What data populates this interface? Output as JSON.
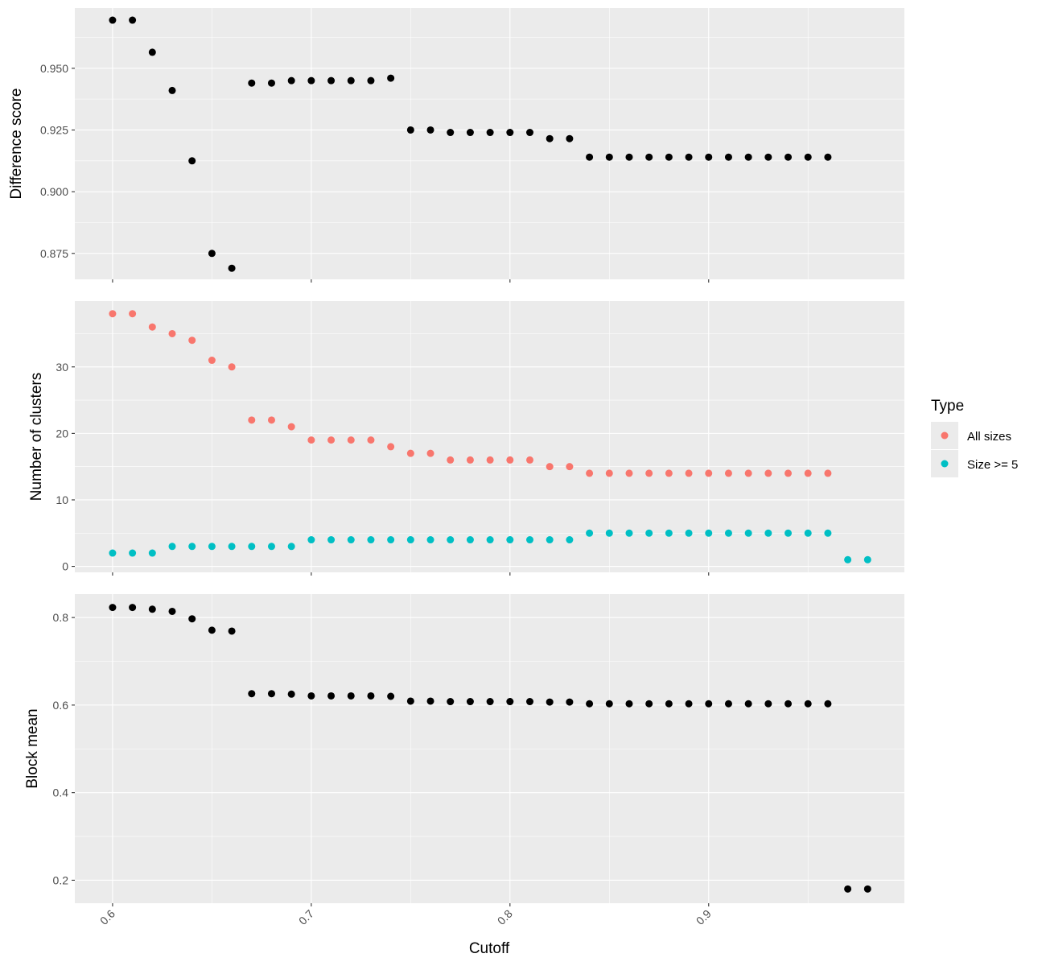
{
  "chart_data": [
    {
      "type": "scatter",
      "ylabel": "Difference score",
      "xlabel": "",
      "xlim": [
        0.581,
        0.9985
      ],
      "ylim": [
        0.8645,
        0.9744
      ],
      "grid": true,
      "yticks": [
        0.875,
        0.9,
        0.925,
        0.95
      ],
      "ytick_labels": [
        "0.875",
        "0.900",
        "0.925",
        "0.950"
      ],
      "series": [
        {
          "color": "#000000",
          "points": [
            [
              0.6,
              0.9695
            ],
            [
              0.61,
              0.9695
            ],
            [
              0.62,
              0.9565
            ],
            [
              0.63,
              0.941
            ],
            [
              0.64,
              0.9125
            ],
            [
              0.65,
              0.875
            ],
            [
              0.66,
              0.869
            ],
            [
              0.67,
              0.944
            ],
            [
              0.68,
              0.944
            ],
            [
              0.69,
              0.945
            ],
            [
              0.7,
              0.945
            ],
            [
              0.71,
              0.945
            ],
            [
              0.72,
              0.945
            ],
            [
              0.73,
              0.945
            ],
            [
              0.74,
              0.946
            ],
            [
              0.75,
              0.925
            ],
            [
              0.76,
              0.925
            ],
            [
              0.77,
              0.924
            ],
            [
              0.78,
              0.924
            ],
            [
              0.79,
              0.924
            ],
            [
              0.8,
              0.924
            ],
            [
              0.81,
              0.924
            ],
            [
              0.82,
              0.9215
            ],
            [
              0.83,
              0.9215
            ],
            [
              0.84,
              0.914
            ],
            [
              0.85,
              0.914
            ],
            [
              0.86,
              0.914
            ],
            [
              0.87,
              0.914
            ],
            [
              0.88,
              0.914
            ],
            [
              0.89,
              0.914
            ],
            [
              0.9,
              0.914
            ],
            [
              0.91,
              0.914
            ],
            [
              0.92,
              0.914
            ],
            [
              0.93,
              0.914
            ],
            [
              0.94,
              0.914
            ],
            [
              0.95,
              0.914
            ],
            [
              0.96,
              0.914
            ]
          ]
        }
      ]
    },
    {
      "type": "scatter",
      "ylabel": "Number of clusters",
      "xlabel": "",
      "xlim": [
        0.581,
        0.9985
      ],
      "ylim": [
        -0.9,
        39.9
      ],
      "grid": true,
      "yticks": [
        0,
        10,
        20,
        30
      ],
      "ytick_labels": [
        "0",
        "10",
        "20",
        "30"
      ],
      "legend": {
        "title": "Type",
        "position": "right"
      },
      "series": [
        {
          "name": "All sizes",
          "color": "#F8766D",
          "points": [
            [
              0.6,
              38
            ],
            [
              0.61,
              38
            ],
            [
              0.62,
              36
            ],
            [
              0.63,
              35
            ],
            [
              0.64,
              34
            ],
            [
              0.65,
              31
            ],
            [
              0.66,
              30
            ],
            [
              0.67,
              22
            ],
            [
              0.68,
              22
            ],
            [
              0.69,
              21
            ],
            [
              0.7,
              19
            ],
            [
              0.71,
              19
            ],
            [
              0.72,
              19
            ],
            [
              0.73,
              19
            ],
            [
              0.74,
              18
            ],
            [
              0.75,
              17
            ],
            [
              0.76,
              17
            ],
            [
              0.77,
              16
            ],
            [
              0.78,
              16
            ],
            [
              0.79,
              16
            ],
            [
              0.8,
              16
            ],
            [
              0.81,
              16
            ],
            [
              0.82,
              15
            ],
            [
              0.83,
              15
            ],
            [
              0.84,
              14
            ],
            [
              0.85,
              14
            ],
            [
              0.86,
              14
            ],
            [
              0.87,
              14
            ],
            [
              0.88,
              14
            ],
            [
              0.89,
              14
            ],
            [
              0.9,
              14
            ],
            [
              0.91,
              14
            ],
            [
              0.92,
              14
            ],
            [
              0.93,
              14
            ],
            [
              0.94,
              14
            ],
            [
              0.95,
              14
            ],
            [
              0.96,
              14
            ]
          ]
        },
        {
          "name": "Size >= 5",
          "color": "#00BFC4",
          "points": [
            [
              0.6,
              2
            ],
            [
              0.61,
              2
            ],
            [
              0.62,
              2
            ],
            [
              0.63,
              3
            ],
            [
              0.64,
              3
            ],
            [
              0.65,
              3
            ],
            [
              0.66,
              3
            ],
            [
              0.67,
              3
            ],
            [
              0.68,
              3
            ],
            [
              0.69,
              3
            ],
            [
              0.7,
              4
            ],
            [
              0.71,
              4
            ],
            [
              0.72,
              4
            ],
            [
              0.73,
              4
            ],
            [
              0.74,
              4
            ],
            [
              0.75,
              4
            ],
            [
              0.76,
              4
            ],
            [
              0.77,
              4
            ],
            [
              0.78,
              4
            ],
            [
              0.79,
              4
            ],
            [
              0.8,
              4
            ],
            [
              0.81,
              4
            ],
            [
              0.82,
              4
            ],
            [
              0.83,
              4
            ],
            [
              0.84,
              5
            ],
            [
              0.85,
              5
            ],
            [
              0.86,
              5
            ],
            [
              0.87,
              5
            ],
            [
              0.88,
              5
            ],
            [
              0.89,
              5
            ],
            [
              0.9,
              5
            ],
            [
              0.91,
              5
            ],
            [
              0.92,
              5
            ],
            [
              0.93,
              5
            ],
            [
              0.94,
              5
            ],
            [
              0.95,
              5
            ],
            [
              0.96,
              5
            ],
            [
              0.97,
              1
            ],
            [
              0.98,
              1
            ]
          ]
        }
      ]
    },
    {
      "type": "scatter",
      "ylabel": "Block mean",
      "xlabel": "Cutoff",
      "xlim": [
        0.581,
        0.9985
      ],
      "ylim": [
        0.1475,
        0.8535
      ],
      "grid": true,
      "yticks": [
        0.2,
        0.4,
        0.6,
        0.8
      ],
      "ytick_labels": [
        "0.2",
        "0.4",
        "0.6",
        "0.8"
      ],
      "series": [
        {
          "color": "#000000",
          "points": [
            [
              0.6,
              0.823
            ],
            [
              0.61,
              0.823
            ],
            [
              0.62,
              0.819
            ],
            [
              0.63,
              0.814
            ],
            [
              0.64,
              0.797
            ],
            [
              0.65,
              0.771
            ],
            [
              0.66,
              0.769
            ],
            [
              0.67,
              0.626
            ],
            [
              0.68,
              0.626
            ],
            [
              0.69,
              0.625
            ],
            [
              0.7,
              0.621
            ],
            [
              0.71,
              0.621
            ],
            [
              0.72,
              0.621
            ],
            [
              0.73,
              0.621
            ],
            [
              0.74,
              0.62
            ],
            [
              0.75,
              0.609
            ],
            [
              0.76,
              0.609
            ],
            [
              0.77,
              0.608
            ],
            [
              0.78,
              0.608
            ],
            [
              0.79,
              0.608
            ],
            [
              0.8,
              0.608
            ],
            [
              0.81,
              0.608
            ],
            [
              0.82,
              0.607
            ],
            [
              0.83,
              0.607
            ],
            [
              0.84,
              0.603
            ],
            [
              0.85,
              0.603
            ],
            [
              0.86,
              0.603
            ],
            [
              0.87,
              0.603
            ],
            [
              0.88,
              0.603
            ],
            [
              0.89,
              0.603
            ],
            [
              0.9,
              0.603
            ],
            [
              0.91,
              0.603
            ],
            [
              0.92,
              0.603
            ],
            [
              0.93,
              0.603
            ],
            [
              0.94,
              0.603
            ],
            [
              0.95,
              0.603
            ],
            [
              0.96,
              0.603
            ],
            [
              0.97,
              0.18
            ],
            [
              0.98,
              0.18
            ]
          ]
        }
      ]
    }
  ],
  "x_axis": {
    "title": "Cutoff",
    "ticks": [
      0.6,
      0.7,
      0.8,
      0.9
    ],
    "tick_labels": [
      "0.6",
      "0.7",
      "0.8",
      "0.9"
    ],
    "tick_label_rotation_deg": -45
  },
  "legend": {
    "title": "Type",
    "items": [
      {
        "label": "All sizes",
        "color": "#F8766D"
      },
      {
        "label": "Size >= 5",
        "color": "#00BFC4"
      }
    ]
  },
  "colors": {
    "panel_background": "#EBEBEB",
    "grid_major": "#FFFFFF",
    "point_default": "#000000",
    "all_sizes": "#F8766D",
    "size_ge_5": "#00BFC4"
  }
}
